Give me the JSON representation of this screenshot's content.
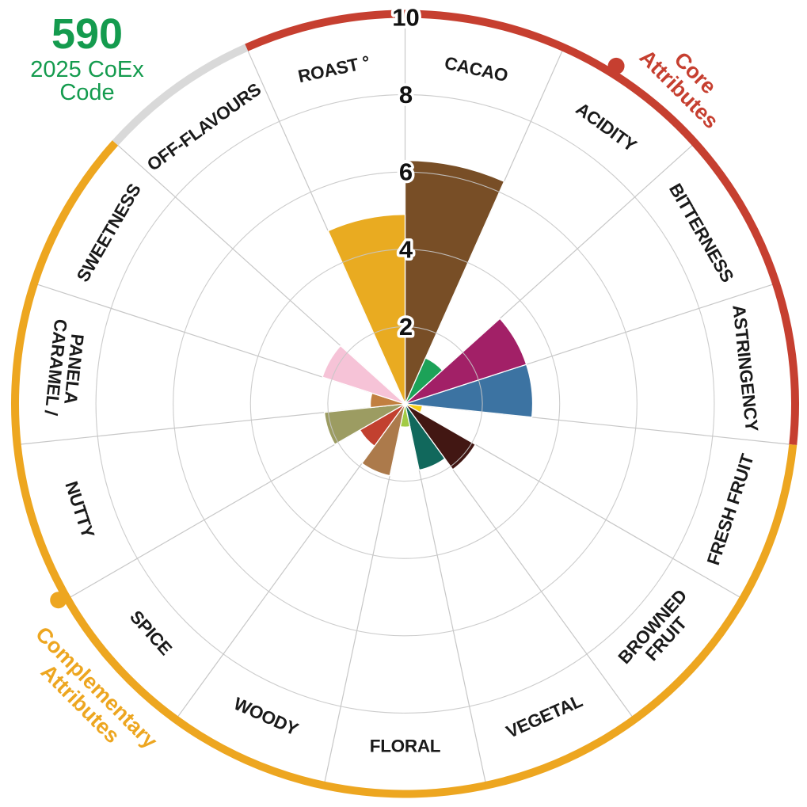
{
  "header": {
    "code": "590",
    "code_label": "2025 CoEx Code",
    "color": "#149B4E"
  },
  "chart_data": {
    "type": "polar-bar",
    "title": "",
    "radial_axis": {
      "ticks": [
        2,
        4,
        6,
        8,
        10
      ],
      "max": 10
    },
    "sector_angle_deg": 24,
    "start_angle_deg": 0,
    "grid": true,
    "sectors": [
      {
        "label": "CACAO",
        "value": 6.3,
        "color": "#784E26",
        "group": "core"
      },
      {
        "label": "ACIDITY",
        "value": 1.3,
        "color": "#1CA258",
        "group": "core"
      },
      {
        "label": "BITTERNESS",
        "value": 3.3,
        "color": "#A22067",
        "group": "core"
      },
      {
        "label": "ASTRINGENCY",
        "value": 3.3,
        "color": "#3C73A2",
        "group": "core"
      },
      {
        "label": "FRESH FRUIT",
        "value": 0.45,
        "color": "#F5CE16",
        "group": "complementary"
      },
      {
        "label": "BROWNED FRUIT",
        "value": 2.1,
        "color": "#421713",
        "group": "complementary",
        "lines": [
          "BROWNED",
          "FRUIT"
        ]
      },
      {
        "label": "VEGETAL",
        "value": 1.75,
        "color": "#11685C",
        "group": "complementary"
      },
      {
        "label": "FLORAL",
        "value": 0.6,
        "color": "#A2CB45",
        "group": "complementary"
      },
      {
        "label": "WOODY",
        "value": 1.9,
        "color": "#AC7A4B",
        "group": "complementary"
      },
      {
        "label": "SPICE",
        "value": 1.35,
        "color": "#C2402F",
        "group": "complementary"
      },
      {
        "label": "NUTTY",
        "value": 2.1,
        "color": "#9C9C62",
        "group": "complementary"
      },
      {
        "label": "CARAMEL / PANELA",
        "value": 0.9,
        "color": "#C17F40",
        "group": "complementary",
        "lines": [
          "CARAMEL /",
          "PANELA"
        ]
      },
      {
        "label": "SWEETNESS",
        "value": 2.25,
        "color": "#F6C3D7",
        "group": "complementary"
      },
      {
        "label": "OFF-FLAVOURS",
        "value": 0,
        "color": "#D9D9D9",
        "group": "neutral"
      },
      {
        "label": "ROAST °",
        "value": 4.9,
        "color": "#E9AB21",
        "group": "core"
      }
    ],
    "groups": [
      {
        "id": "core",
        "name": "Core Attributes",
        "lines": [
          "Core",
          "Attributes"
        ],
        "color": "#C63F30",
        "arc_start_deg": -24,
        "arc_end_deg": 96,
        "dot": true
      },
      {
        "id": "complementary",
        "name": "Complementary Attributes",
        "lines": [
          "Complementary",
          "Attributes"
        ],
        "color": "#EDA620",
        "arc_start_deg": 96,
        "arc_end_deg": 312,
        "dot": true
      },
      {
        "id": "neutral",
        "name": "",
        "lines": [],
        "color": "#D9D9D9",
        "arc_start_deg": 312,
        "arc_end_deg": 336,
        "dot": false
      }
    ]
  }
}
